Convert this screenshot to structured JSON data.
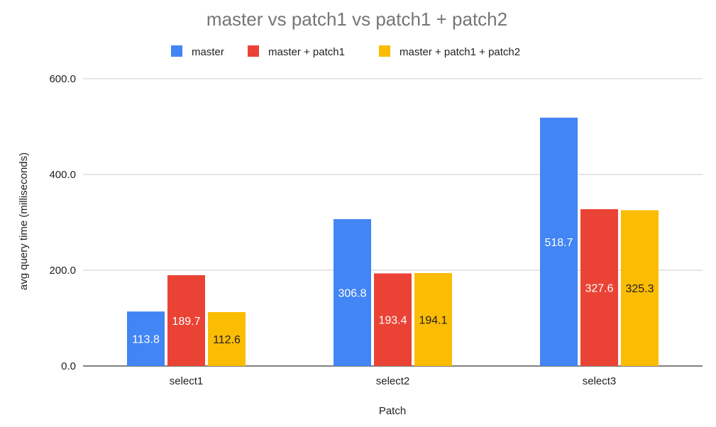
{
  "chart_data": {
    "type": "bar",
    "title": "master vs patch1 vs patch1 + patch2",
    "xlabel": "Patch",
    "ylabel": "avg query time (milliseconds)",
    "categories": [
      "select1",
      "select2",
      "select3"
    ],
    "series": [
      {
        "name": "master",
        "values": [
          113.8,
          306.8,
          518.7
        ],
        "color": "#4285f4",
        "label_color": "#ffffff"
      },
      {
        "name": "master + patch1",
        "values": [
          189.7,
          193.4,
          327.6
        ],
        "color": "#ea4335",
        "label_color": "#ffffff"
      },
      {
        "name": "master + patch1 + patch2",
        "values": [
          112.6,
          194.1,
          325.3
        ],
        "color": "#fbbc04",
        "label_color": "#222222"
      }
    ],
    "ylim": [
      0,
      600
    ],
    "yticks": [
      0,
      200,
      400,
      600
    ],
    "ytick_labels": [
      "0.0",
      "200.0",
      "400.0",
      "600.0"
    ],
    "grid": true,
    "legend_position": "top-center"
  }
}
